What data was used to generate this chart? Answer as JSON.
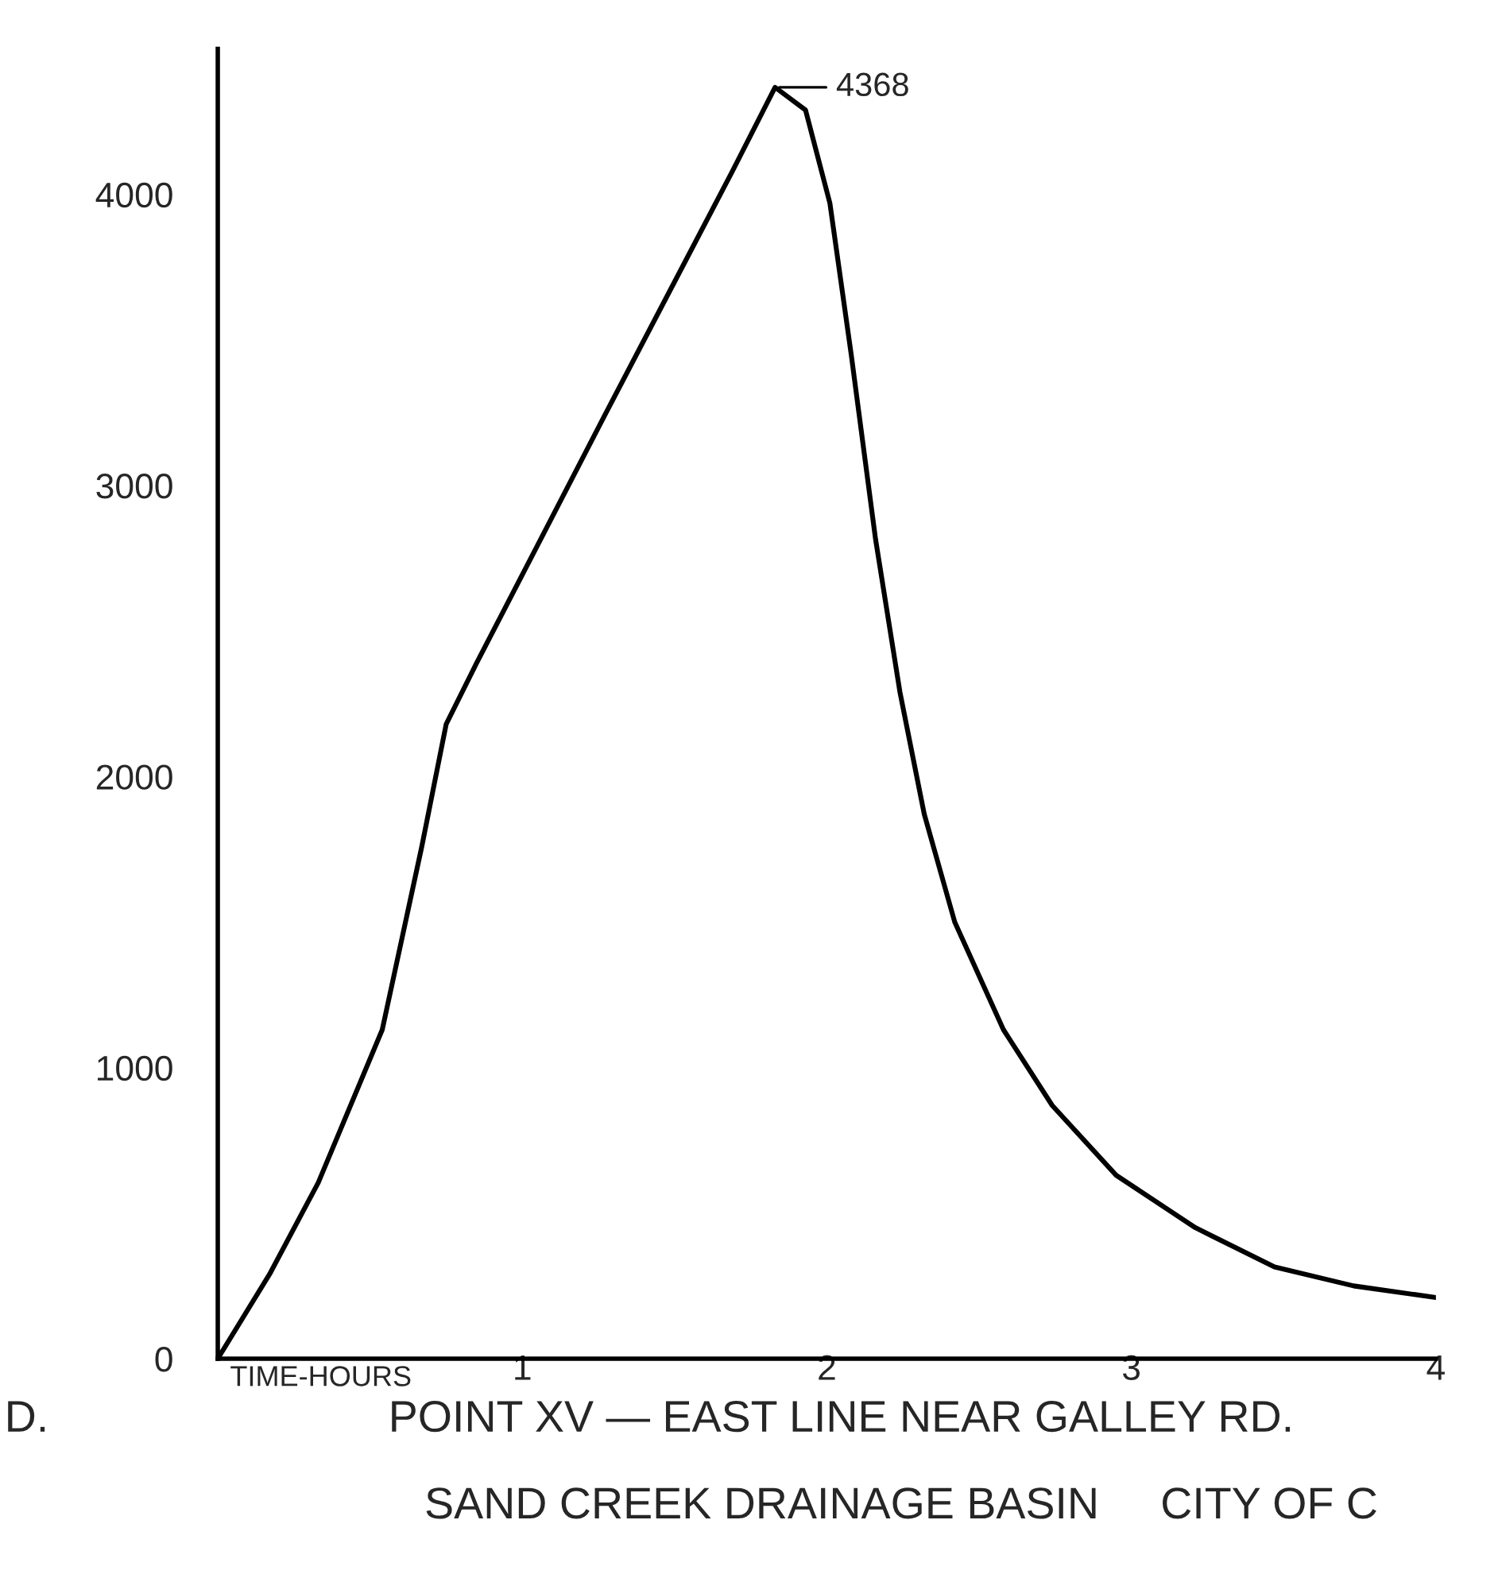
{
  "chart_data": {
    "type": "line",
    "title": "POINT XV — EAST LINE NEAR GALLEY RD.",
    "subtitle": "SAND CREEK DRAINAGE BASIN     CITY OF C",
    "xlabel": "TIME-HOURS",
    "annotations": [
      "D.",
      {
        "text": "4368",
        "x": 1.83,
        "y": 4368
      }
    ],
    "xlim": [
      0,
      4
    ],
    "xticks": [
      {
        "value": 0,
        "label": null
      },
      1,
      2,
      3,
      4
    ],
    "ylim": [
      0,
      4500
    ],
    "yticks": [
      0,
      1000,
      2000,
      3000,
      4000
    ],
    "grid": false,
    "marker": "none",
    "line_style": "solid",
    "series": [
      {
        "color": "#000000",
        "x": [
          0,
          0.17,
          0.33,
          0.54,
          0.67,
          0.75,
          0.85,
          1.06,
          1.27,
          1.48,
          1.69,
          1.83,
          1.93,
          2.01,
          2.08,
          2.16,
          2.24,
          2.32,
          2.42,
          2.58,
          2.74,
          2.95,
          3.21,
          3.47,
          3.73,
          4.0
        ],
        "values": [
          0,
          290,
          605,
          1130,
          1760,
          2180,
          2390,
          2815,
          3240,
          3660,
          4080,
          4368,
          4290,
          3970,
          3450,
          2815,
          2290,
          1870,
          1500,
          1130,
          870,
          630,
          450,
          315,
          250,
          210
        ]
      }
    ]
  }
}
